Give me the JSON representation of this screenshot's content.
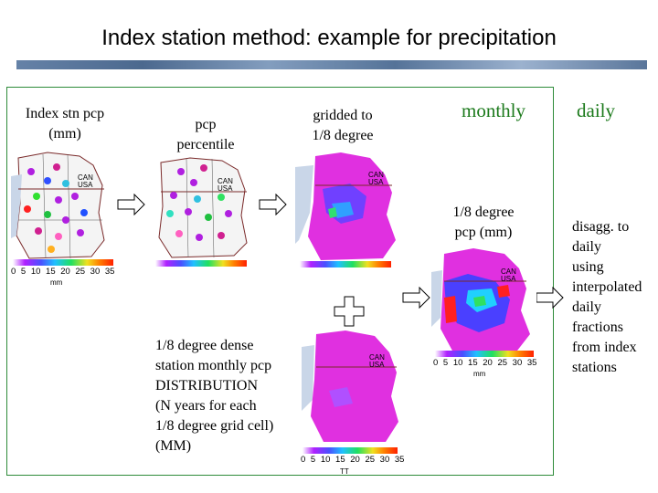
{
  "title": "Index station method: example for precipitation",
  "labels": {
    "index_stn": [
      "Index stn pcp",
      "(mm)"
    ],
    "percentile": [
      "pcp",
      "percentile"
    ],
    "gridded": [
      "gridded to",
      "1/8 degree"
    ],
    "monthly": "monthly",
    "daily": "daily",
    "monthly_pcp": [
      "1/8 degree",
      "pcp (mm)"
    ],
    "distribution": [
      "1/8 degree dense",
      "station monthly pcp",
      "DISTRIBUTION",
      "(N years for each",
      "1/8 degree grid cell)",
      "(MM)"
    ],
    "disagg": [
      "disagg. to",
      "daily",
      "using",
      "interpolated",
      "daily",
      "fractions",
      "from index",
      "stations"
    ]
  },
  "map_text": {
    "can": "CAN",
    "usa": "USA"
  },
  "colorbar": {
    "ticks": "0 5 10 15 20 25 30 35",
    "unit": "mm",
    "partial_unit": "TT"
  },
  "colors": {
    "frame": "#2e8b3a",
    "heading_green": "#1c7a1c"
  }
}
